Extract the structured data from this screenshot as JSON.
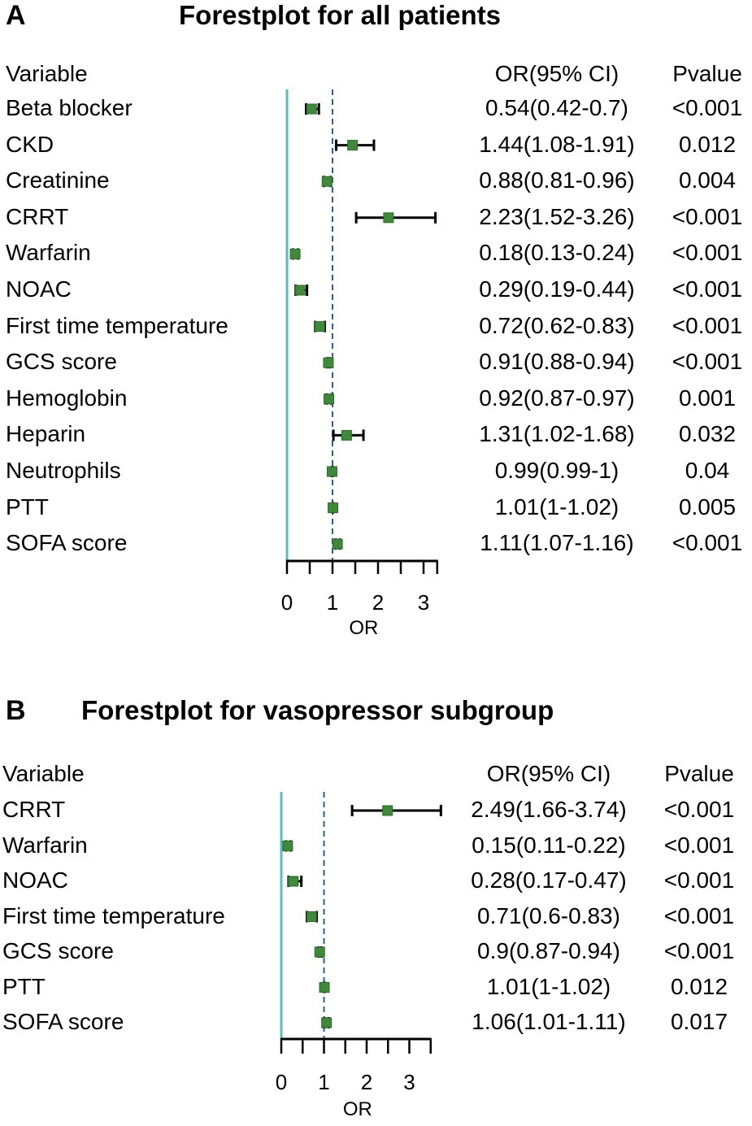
{
  "chart_data": [
    {
      "type": "forest",
      "panel_label": "A",
      "title": "Forestplot for all patients",
      "columns": {
        "variable": "Variable",
        "or_ci": "OR(95% CI)",
        "pvalue": "Pvalue"
      },
      "xlabel": "OR",
      "xlim": [
        0,
        3.3
      ],
      "xticks": [
        0,
        1,
        2,
        3
      ],
      "reference_line": 1,
      "rows": [
        {
          "variable": "Beta blocker",
          "or": 0.54,
          "lower": 0.42,
          "upper": 0.7,
          "or_ci": "0.54(0.42-0.7)",
          "pvalue": "<0.001"
        },
        {
          "variable": "CKD",
          "or": 1.44,
          "lower": 1.08,
          "upper": 1.91,
          "or_ci": "1.44(1.08-1.91)",
          "pvalue": "0.012"
        },
        {
          "variable": "Creatinine",
          "or": 0.88,
          "lower": 0.81,
          "upper": 0.96,
          "or_ci": "0.88(0.81-0.96)",
          "pvalue": "0.004"
        },
        {
          "variable": "CRRT",
          "or": 2.23,
          "lower": 1.52,
          "upper": 3.26,
          "or_ci": "2.23(1.52-3.26)",
          "pvalue": "<0.001"
        },
        {
          "variable": "Warfarin",
          "or": 0.18,
          "lower": 0.13,
          "upper": 0.24,
          "or_ci": "0.18(0.13-0.24)",
          "pvalue": "<0.001"
        },
        {
          "variable": "NOAC",
          "or": 0.29,
          "lower": 0.19,
          "upper": 0.44,
          "or_ci": "0.29(0.19-0.44)",
          "pvalue": "<0.001"
        },
        {
          "variable": "First time temperature",
          "or": 0.72,
          "lower": 0.62,
          "upper": 0.83,
          "or_ci": "0.72(0.62-0.83)",
          "pvalue": "<0.001"
        },
        {
          "variable": "GCS score",
          "or": 0.91,
          "lower": 0.88,
          "upper": 0.94,
          "or_ci": "0.91(0.88-0.94)",
          "pvalue": "<0.001"
        },
        {
          "variable": "Hemoglobin",
          "or": 0.92,
          "lower": 0.87,
          "upper": 0.97,
          "or_ci": "0.92(0.87-0.97)",
          "pvalue": "0.001"
        },
        {
          "variable": "Heparin",
          "or": 1.31,
          "lower": 1.02,
          "upper": 1.68,
          "or_ci": "1.31(1.02-1.68)",
          "pvalue": "0.032"
        },
        {
          "variable": "Neutrophils",
          "or": 0.99,
          "lower": 0.99,
          "upper": 1,
          "or_ci": "0.99(0.99-1)",
          "pvalue": "0.04"
        },
        {
          "variable": "PTT",
          "or": 1.01,
          "lower": 1,
          "upper": 1.02,
          "or_ci": "1.01(1-1.02)",
          "pvalue": "0.005"
        },
        {
          "variable": "SOFA score",
          "or": 1.11,
          "lower": 1.07,
          "upper": 1.16,
          "or_ci": "1.11(1.07-1.16)",
          "pvalue": "<0.001"
        }
      ]
    },
    {
      "type": "forest",
      "panel_label": "B",
      "title": "Forestplot for vasopressor subgroup",
      "columns": {
        "variable": "Variable",
        "or_ci": "OR(95% CI)",
        "pvalue": "Pvalue"
      },
      "xlabel": "OR",
      "xlim": [
        0,
        3.5
      ],
      "xticks": [
        0,
        1,
        2,
        3
      ],
      "reference_line": 1,
      "rows": [
        {
          "variable": "CRRT",
          "or": 2.49,
          "lower": 1.66,
          "upper": 3.74,
          "or_ci": "2.49(1.66-3.74)",
          "pvalue": "<0.001"
        },
        {
          "variable": "Warfarin",
          "or": 0.15,
          "lower": 0.11,
          "upper": 0.22,
          "or_ci": "0.15(0.11-0.22)",
          "pvalue": "<0.001"
        },
        {
          "variable": "NOAC",
          "or": 0.28,
          "lower": 0.17,
          "upper": 0.47,
          "or_ci": "0.28(0.17-0.47)",
          "pvalue": "<0.001"
        },
        {
          "variable": "First time temperature",
          "or": 0.71,
          "lower": 0.6,
          "upper": 0.83,
          "or_ci": "0.71(0.6-0.83)",
          "pvalue": "<0.001"
        },
        {
          "variable": "GCS score",
          "or": 0.9,
          "lower": 0.87,
          "upper": 0.94,
          "or_ci": "0.9(0.87-0.94)",
          "pvalue": "<0.001"
        },
        {
          "variable": "PTT",
          "or": 1.01,
          "lower": 1,
          "upper": 1.02,
          "or_ci": "1.01(1-1.02)",
          "pvalue": "0.012"
        },
        {
          "variable": "SOFA score",
          "or": 1.06,
          "lower": 1.01,
          "upper": 1.11,
          "or_ci": "1.06(1.01-1.11)",
          "pvalue": "0.017"
        }
      ]
    }
  ],
  "colors": {
    "zero_line": "#5bbcc0",
    "reference_line": "#2e5d8f",
    "marker": "#3f8a3a",
    "whisker": "#000000"
  }
}
